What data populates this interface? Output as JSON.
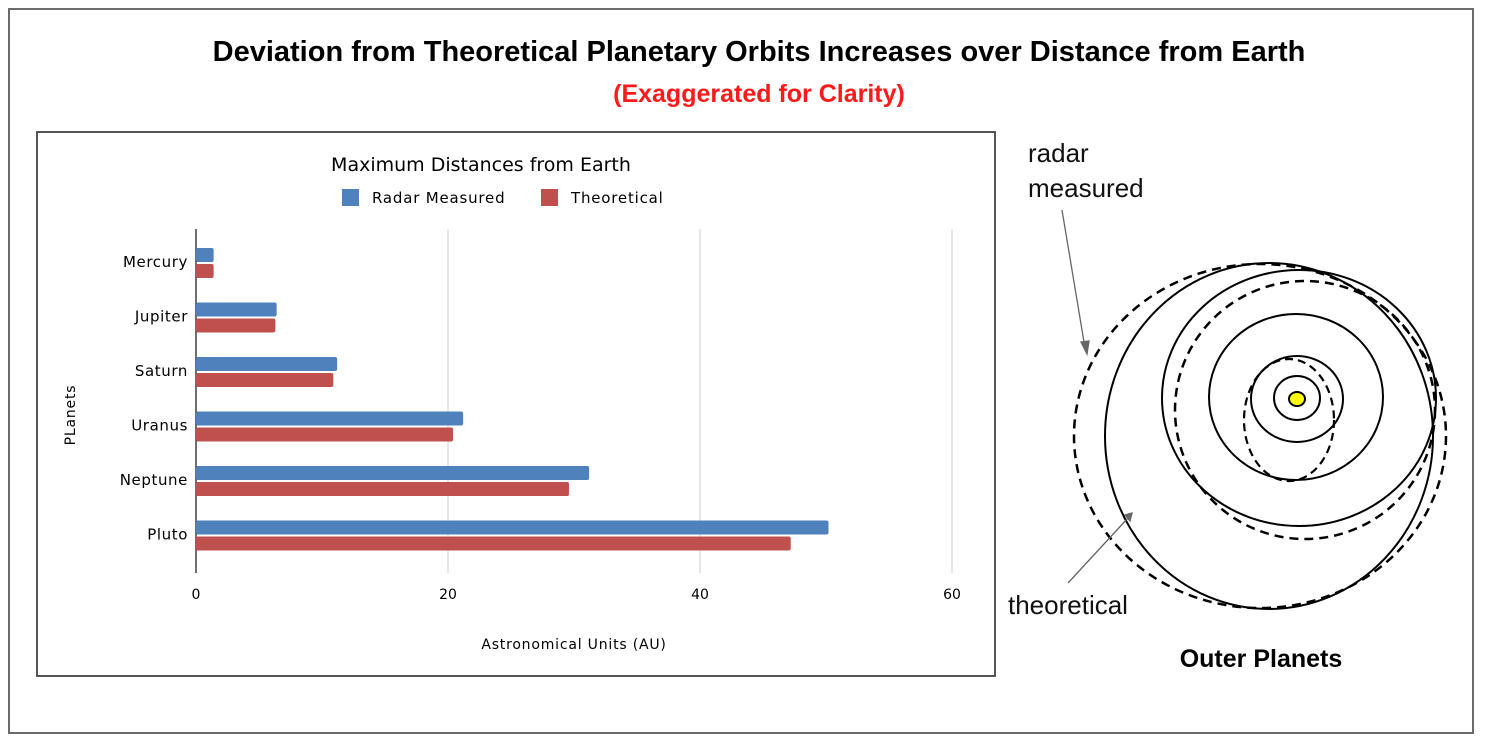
{
  "figure": {
    "title": "Deviation from Theoretical Planetary Orbits Increases over Distance from Earth",
    "subtitle": "(Exaggerated for Clarity)"
  },
  "chart_data": {
    "type": "bar",
    "orientation": "horizontal",
    "title": "Maximum Distances from Earth",
    "categories": [
      "Mercury",
      "Jupiter",
      "Saturn",
      "Uranus",
      "Neptune",
      "Pluto"
    ],
    "series": [
      {
        "name": "Radar Measured",
        "color": "#4f81bd",
        "values": [
          1.4,
          6.4,
          11.2,
          21.2,
          31.2,
          50.2
        ]
      },
      {
        "name": "Theoretical",
        "color": "#c0504d",
        "values": [
          1.4,
          6.3,
          10.9,
          20.4,
          29.6,
          47.2
        ]
      }
    ],
    "xlabel": "Astronomical Units (AU)",
    "ylabel": "PLanets",
    "xlim": [
      0,
      60
    ],
    "xticks": [
      0,
      20,
      40,
      60
    ],
    "grid": true,
    "legend": "top"
  },
  "diagram": {
    "label_radar": [
      "radar",
      "measured"
    ],
    "label_theoretical": "theoretical",
    "caption": "Outer Planets",
    "sun_color": "#ffff00"
  }
}
